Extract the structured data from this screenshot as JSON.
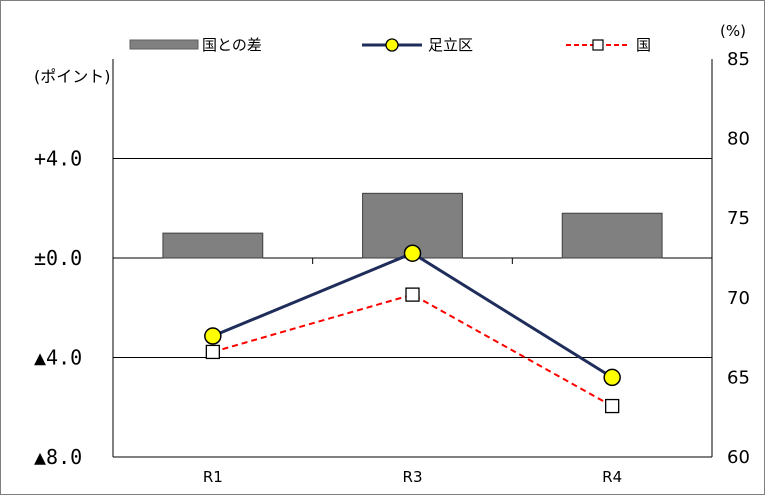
{
  "chart_data": {
    "type": "bar+line",
    "categories": [
      "R1",
      "R3",
      "R4"
    ],
    "left_axis": {
      "unit": "(ポイント)",
      "ylim": [
        -8,
        8
      ],
      "tick_values": [
        4,
        0,
        -4,
        -8
      ],
      "tick_labels": [
        "+4.0",
        "±0.0",
        "▲4.0",
        "▲8.0"
      ]
    },
    "right_axis": {
      "unit": "(%)",
      "ylim": [
        60,
        85
      ],
      "ticks": [
        "85",
        "80",
        "75",
        "70",
        "65",
        "60"
      ]
    },
    "series": [
      {
        "name": "国との差",
        "kind": "bar",
        "axis": "left",
        "values": [
          1.0,
          2.6,
          1.8
        ],
        "color": "#808080"
      },
      {
        "name": "足立区",
        "kind": "line",
        "axis": "right",
        "values": [
          67.6,
          72.8,
          65.0
        ],
        "color": "#1f2d5a",
        "marker_fill": "#ffff00"
      },
      {
        "name": "国",
        "kind": "line",
        "axis": "right",
        "values": [
          66.6,
          70.2,
          63.2
        ],
        "color": "#ff0000",
        "marker_fill": "#ffffff",
        "dashed": true
      }
    ],
    "legend_position": "top",
    "grid": true
  }
}
